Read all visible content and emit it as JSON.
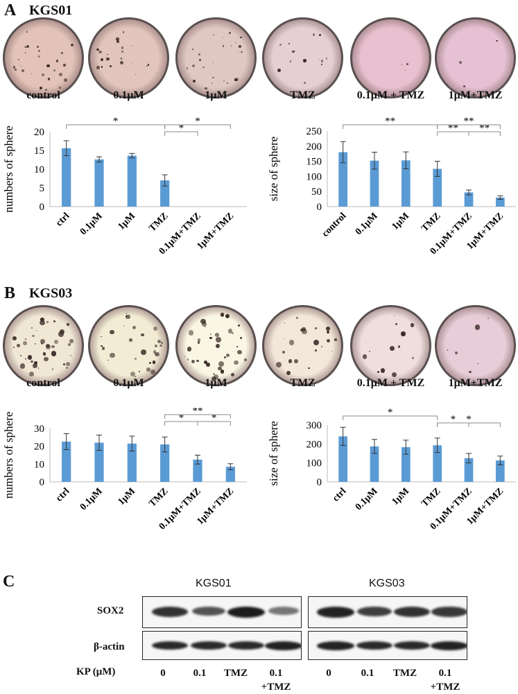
{
  "panels": {
    "A": {
      "letter": "A",
      "title": "KGS01"
    },
    "B": {
      "letter": "B",
      "title": "KGS03"
    },
    "C": {
      "letter": "C"
    }
  },
  "wells": {
    "A": {
      "labels": [
        "control",
        "0.1μM",
        "1μM",
        "TMZ",
        "0.1μM + TMZ",
        "1μM+TMZ"
      ],
      "colors": [
        "#e3c3b8",
        "#e2c5bc",
        "#e0c8c2",
        "#e4cfd2",
        "#e8c0d0",
        "#e6c1d3"
      ]
    },
    "B": {
      "labels": [
        "control",
        "0.1μM",
        "1μM",
        "TMZ",
        "0.1μM + TMZ",
        "1μM+TMZ"
      ],
      "colors": [
        "#f0e7d5",
        "#f3ecd5",
        "#faf6e4",
        "#f2e7d8",
        "#efdede",
        "#e8ccd8"
      ]
    }
  },
  "chart_data": [
    {
      "id": "A-numbers",
      "type": "bar",
      "ylabel": "numbers of sphere",
      "categories": [
        "ctrl",
        "0.1μM",
        "1μM",
        "TMZ",
        "0.1μM+TMZ",
        "1μM+TMZ"
      ],
      "values": [
        15.6,
        12.6,
        13.6,
        7.0,
        0,
        0
      ],
      "errors": [
        2.0,
        0.7,
        0.6,
        1.5,
        0,
        0
      ],
      "ylim": [
        0,
        20
      ],
      "yticks": [
        0,
        5,
        10,
        15,
        20
      ],
      "significance": [
        {
          "from": 0,
          "to": 3,
          "label": "*"
        },
        {
          "from": 3,
          "to": 4,
          "label": "*"
        },
        {
          "from": 3,
          "to": 5,
          "label": "*"
        }
      ]
    },
    {
      "id": "A-size",
      "type": "bar",
      "ylabel": "size of sphere",
      "categories": [
        "control",
        "0.1μM",
        "1μM",
        "TMZ",
        "0.1μM+TMZ",
        "1μM+TMZ"
      ],
      "values": [
        180,
        152,
        153,
        125,
        47,
        30
      ],
      "errors": [
        35,
        28,
        28,
        25,
        8,
        6
      ],
      "ylim": [
        0,
        250
      ],
      "yticks": [
        0,
        50,
        100,
        150,
        200,
        250
      ],
      "significance": [
        {
          "from": 0,
          "to": 3,
          "label": "**"
        },
        {
          "from": 3,
          "to": 4,
          "label": "**"
        },
        {
          "from": 4,
          "to": 5,
          "label": "**"
        },
        {
          "from": 3,
          "to": 5,
          "label": "**"
        }
      ]
    },
    {
      "id": "B-numbers",
      "type": "bar",
      "ylabel": "numbers of sphere",
      "categories": [
        "ctrl",
        "0.1μM",
        "1μM",
        "TMZ",
        "0.1μM+TMZ",
        "1μM+TMZ"
      ],
      "values": [
        22.6,
        22.0,
        21.5,
        21.0,
        12.5,
        8.5
      ],
      "errors": [
        4.5,
        4.3,
        4.2,
        4.2,
        2.5,
        1.7
      ],
      "ylim": [
        0,
        30
      ],
      "yticks": [
        0,
        10,
        20,
        30
      ],
      "significance": [
        {
          "from": 3,
          "to": 4,
          "label": "*"
        },
        {
          "from": 4,
          "to": 5,
          "label": "*"
        },
        {
          "from": 3,
          "to": 5,
          "label": "**"
        }
      ]
    },
    {
      "id": "B-size",
      "type": "bar",
      "ylabel": "size of sphere",
      "categories": [
        "ctrl",
        "0.1μM",
        "1μM",
        "TMZ",
        "0.1μM+TMZ",
        "1μM+TMZ"
      ],
      "values": [
        240,
        187,
        183,
        193,
        125,
        113
      ],
      "errors": [
        48,
        37,
        37,
        38,
        25,
        23
      ],
      "ylim": [
        0,
        300
      ],
      "yticks": [
        0,
        100,
        200,
        300
      ],
      "significance": [
        {
          "from": 0,
          "to": 3,
          "label": "*"
        },
        {
          "from": 3,
          "to": 4,
          "label": "*"
        },
        {
          "from": 3,
          "to": 5,
          "label": "*"
        }
      ]
    }
  ],
  "blot": {
    "groups": [
      "KGS01",
      "KGS03"
    ],
    "rows": [
      "SOX2",
      "β-actin"
    ],
    "axis_label": "KP (μM)",
    "lanes": [
      "0",
      "0.1",
      "TMZ",
      "0.1\n+TMZ",
      "0",
      "0.1",
      "TMZ",
      "0.1\n+TMZ"
    ],
    "sox2_intensity": [
      0.85,
      0.6,
      1.0,
      0.35,
      0.95,
      0.75,
      0.85,
      0.8
    ],
    "actin_intensity": [
      0.9,
      0.9,
      0.9,
      0.95,
      0.95,
      0.9,
      0.9,
      0.95
    ]
  },
  "style": {
    "bar_color": "#5b9bd5"
  }
}
